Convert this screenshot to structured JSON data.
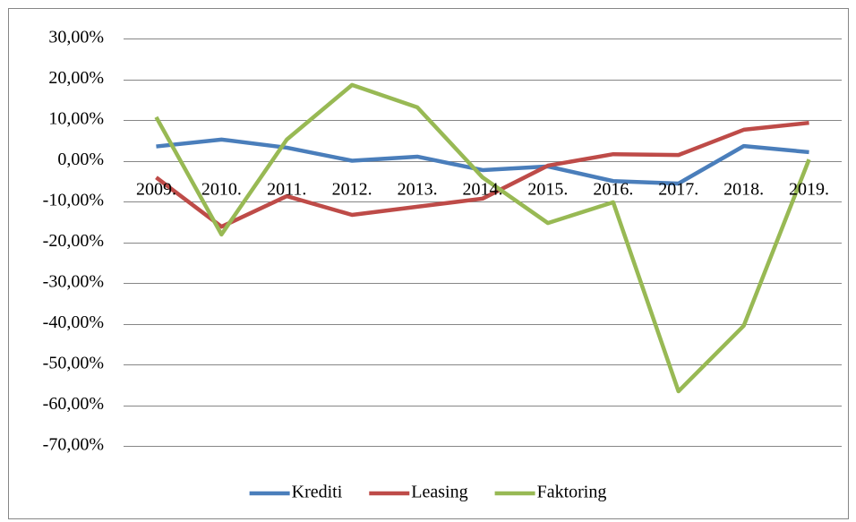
{
  "chart_data": {
    "type": "line",
    "categories": [
      "2009.",
      "2010.",
      "2011.",
      "2012.",
      "2013.",
      "2014.",
      "2015.",
      "2016.",
      "2017.",
      "2018.",
      "2019."
    ],
    "series": [
      {
        "name": "Krediti",
        "color": "#4a7ebb",
        "values": [
          3.5,
          5.2,
          3.2,
          0.0,
          1.0,
          -2.3,
          -1.4,
          -5.0,
          -5.6,
          3.6,
          2.1
        ]
      },
      {
        "name": "Leasing",
        "color": "#be4b48",
        "values": [
          -4.1,
          -16.2,
          -8.7,
          -13.3,
          -11.3,
          -9.3,
          -1.2,
          1.6,
          1.4,
          7.6,
          9.3
        ]
      },
      {
        "name": "Faktoring",
        "color": "#98b954",
        "values": [
          10.7,
          -18.1,
          5.2,
          18.6,
          13.1,
          -4.1,
          -15.3,
          -10.2,
          -56.6,
          -40.5,
          0.3
        ]
      }
    ],
    "ylim": [
      -70,
      30
    ],
    "yticks": [
      {
        "value": -70,
        "label": "-70,00%"
      },
      {
        "value": -60,
        "label": "-60,00%"
      },
      {
        "value": -50,
        "label": "-50,00%"
      },
      {
        "value": -40,
        "label": "-40,00%"
      },
      {
        "value": -30,
        "label": "-30,00%"
      },
      {
        "value": -20,
        "label": "-20,00%"
      },
      {
        "value": -10,
        "label": "-10,00%"
      },
      {
        "value": 0,
        "label": "0,00%"
      },
      {
        "value": 10,
        "label": "10,00%"
      },
      {
        "value": 20,
        "label": "20,00%"
      },
      {
        "value": 30,
        "label": "30,00%"
      }
    ],
    "grid": true,
    "legend": "bottom"
  }
}
